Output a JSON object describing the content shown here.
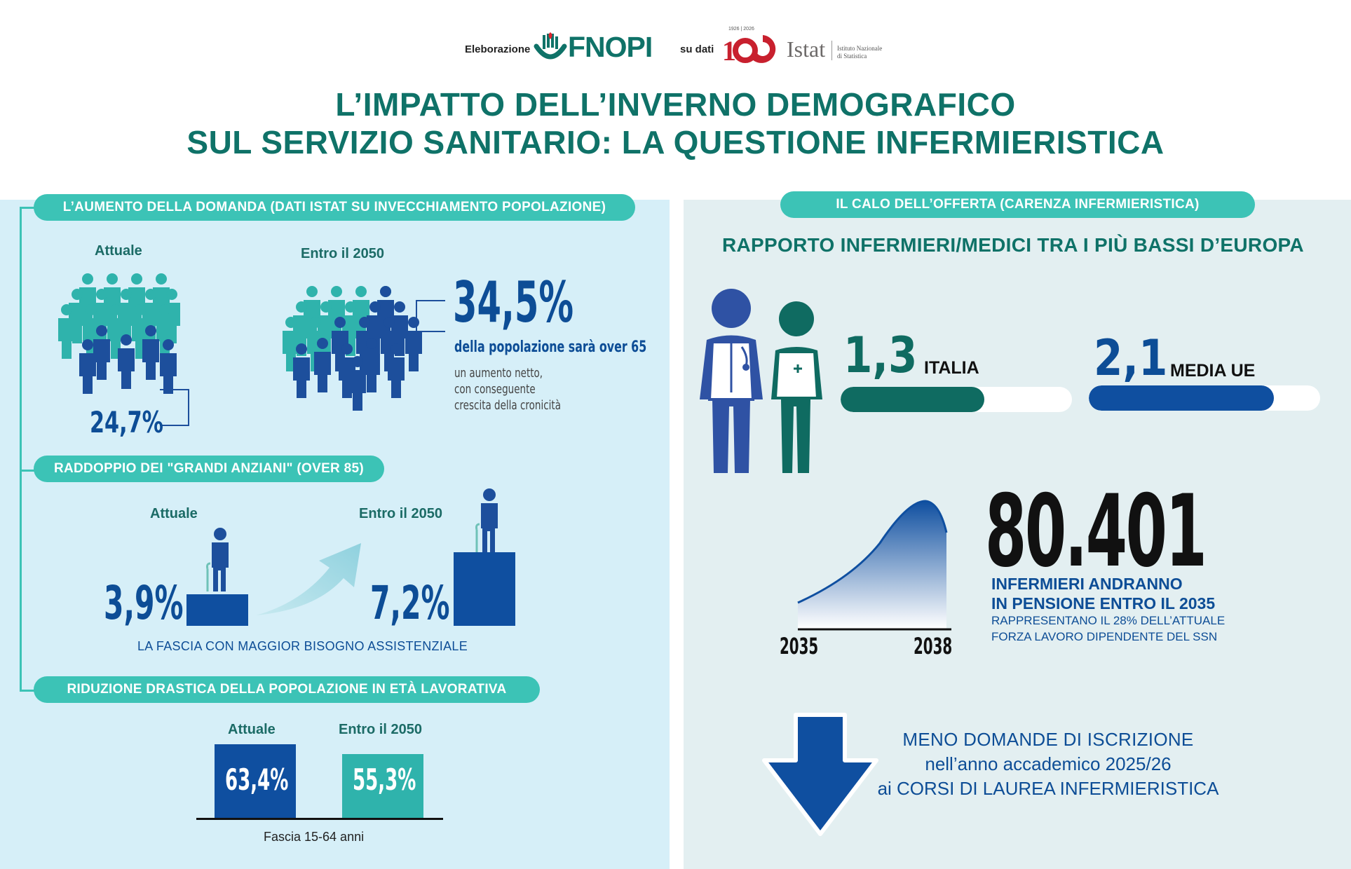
{
  "header": {
    "credit_prefix": "Eleborazione",
    "brand_fnopi": "FNOPI",
    "credit_mid": "su dati",
    "istat_badge": "1926 | 2026",
    "istat_name": "Istat",
    "istat_sub1": "Istituto Nazionale",
    "istat_sub2": "di Statistica",
    "title_line1": "L’IMPATTO DELL’INVERNO DEMOGRAFICO",
    "title_line2": "SUL SERVIZIO SANITARIO: LA QUESTIONE INFERMIERISTICA"
  },
  "left": {
    "section1": {
      "pill": "L’AUMENTO DELLA DOMANDA (DATI ISTAT SU INVECCHIAMENTO POPOLAZIONE)",
      "current_label": "Attuale",
      "future_label": "Entro il 2050",
      "current_value": "24,7%",
      "future_value": "34,5%",
      "future_text": "della popolazione sarà over 65",
      "future_note_1": "un aumento netto,",
      "future_note_2": "con conseguente",
      "future_note_3": "crescita della cronicità"
    },
    "section2": {
      "pill": "RADDOPPIO DEI \"GRANDI ANZIANI\" (OVER 85)",
      "current_label": "Attuale",
      "future_label": "Entro il 2050",
      "current_value": "3,9%",
      "future_value": "7,2%",
      "caption": "LA FASCIA CON MAGGIOR BISOGNO ASSISTENZIALE"
    },
    "section3": {
      "pill": "RIDUZIONE DRASTICA DELLA POPOLAZIONE IN ETÀ LAVORATIVA",
      "current_label": "Attuale",
      "future_label": "Entro il 2050",
      "current_value": "63,4%",
      "future_value": "55,3%",
      "caption": "Fascia 15-64 anni"
    }
  },
  "right": {
    "pill": "IL CALO DELL’OFFERTA (CARENZA INFERMIERISTICA)",
    "subtitle": "RAPPORTO INFERMIERI/MEDICI TRA I PIÙ BASSI D’EUROPA",
    "italy_value": "1,3",
    "italy_label": "ITALIA",
    "eu_value": "2,1",
    "eu_label": "MEDIA UE",
    "italy_bar_fraction": 0.62,
    "eu_bar_fraction": 0.8,
    "retire_number": "80.401",
    "retire_line1": "INFERMIERI ANDRANNO",
    "retire_line2": "IN PENSIONE ENTRO IL 2035",
    "retire_line3": "RAPPRESENTANO IL 28% DELL’ATTUALE",
    "retire_line4": "FORZA LAVORO DIPENDENTE DEL SSN",
    "curve_start": "2035",
    "curve_end": "2038",
    "enroll_line1": "MENO DOMANDE DI ISCRIZIONE",
    "enroll_line2": "nell’anno accademico 2025/26",
    "enroll_line3": "ai CORSI DI LAUREA INFERMIERISTICA"
  },
  "colors": {
    "teal": "#3cc3b6",
    "dark_teal": "#0f7268",
    "navy": "#0d4d96",
    "bar_blue": "#0f4fa0",
    "light_blue_panel": "#d6eff8",
    "grey_panel": "#e3eff1"
  }
}
